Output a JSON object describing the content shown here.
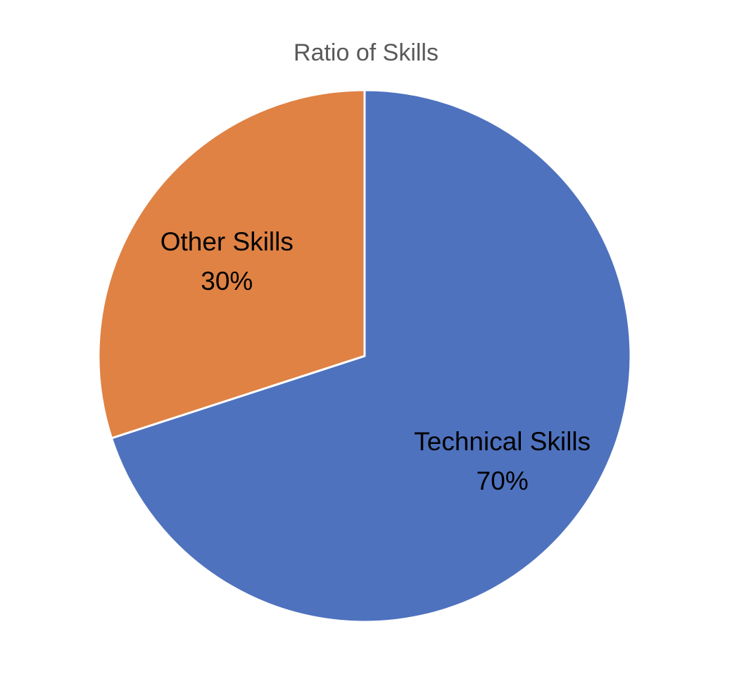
{
  "chart_data": {
    "type": "pie",
    "title": "Ratio of Skills",
    "slices": [
      {
        "name": "Technical Skills",
        "value": 70,
        "label": "70%",
        "color": "#4E72BE"
      },
      {
        "name": "Other Skills",
        "value": 30,
        "label": "30%",
        "color": "#DF8244"
      }
    ],
    "start_angle_deg": 0,
    "direction": "clockwise",
    "legend": "none",
    "data_labels": "inside",
    "slice_border_color": "#FFFFFF"
  }
}
